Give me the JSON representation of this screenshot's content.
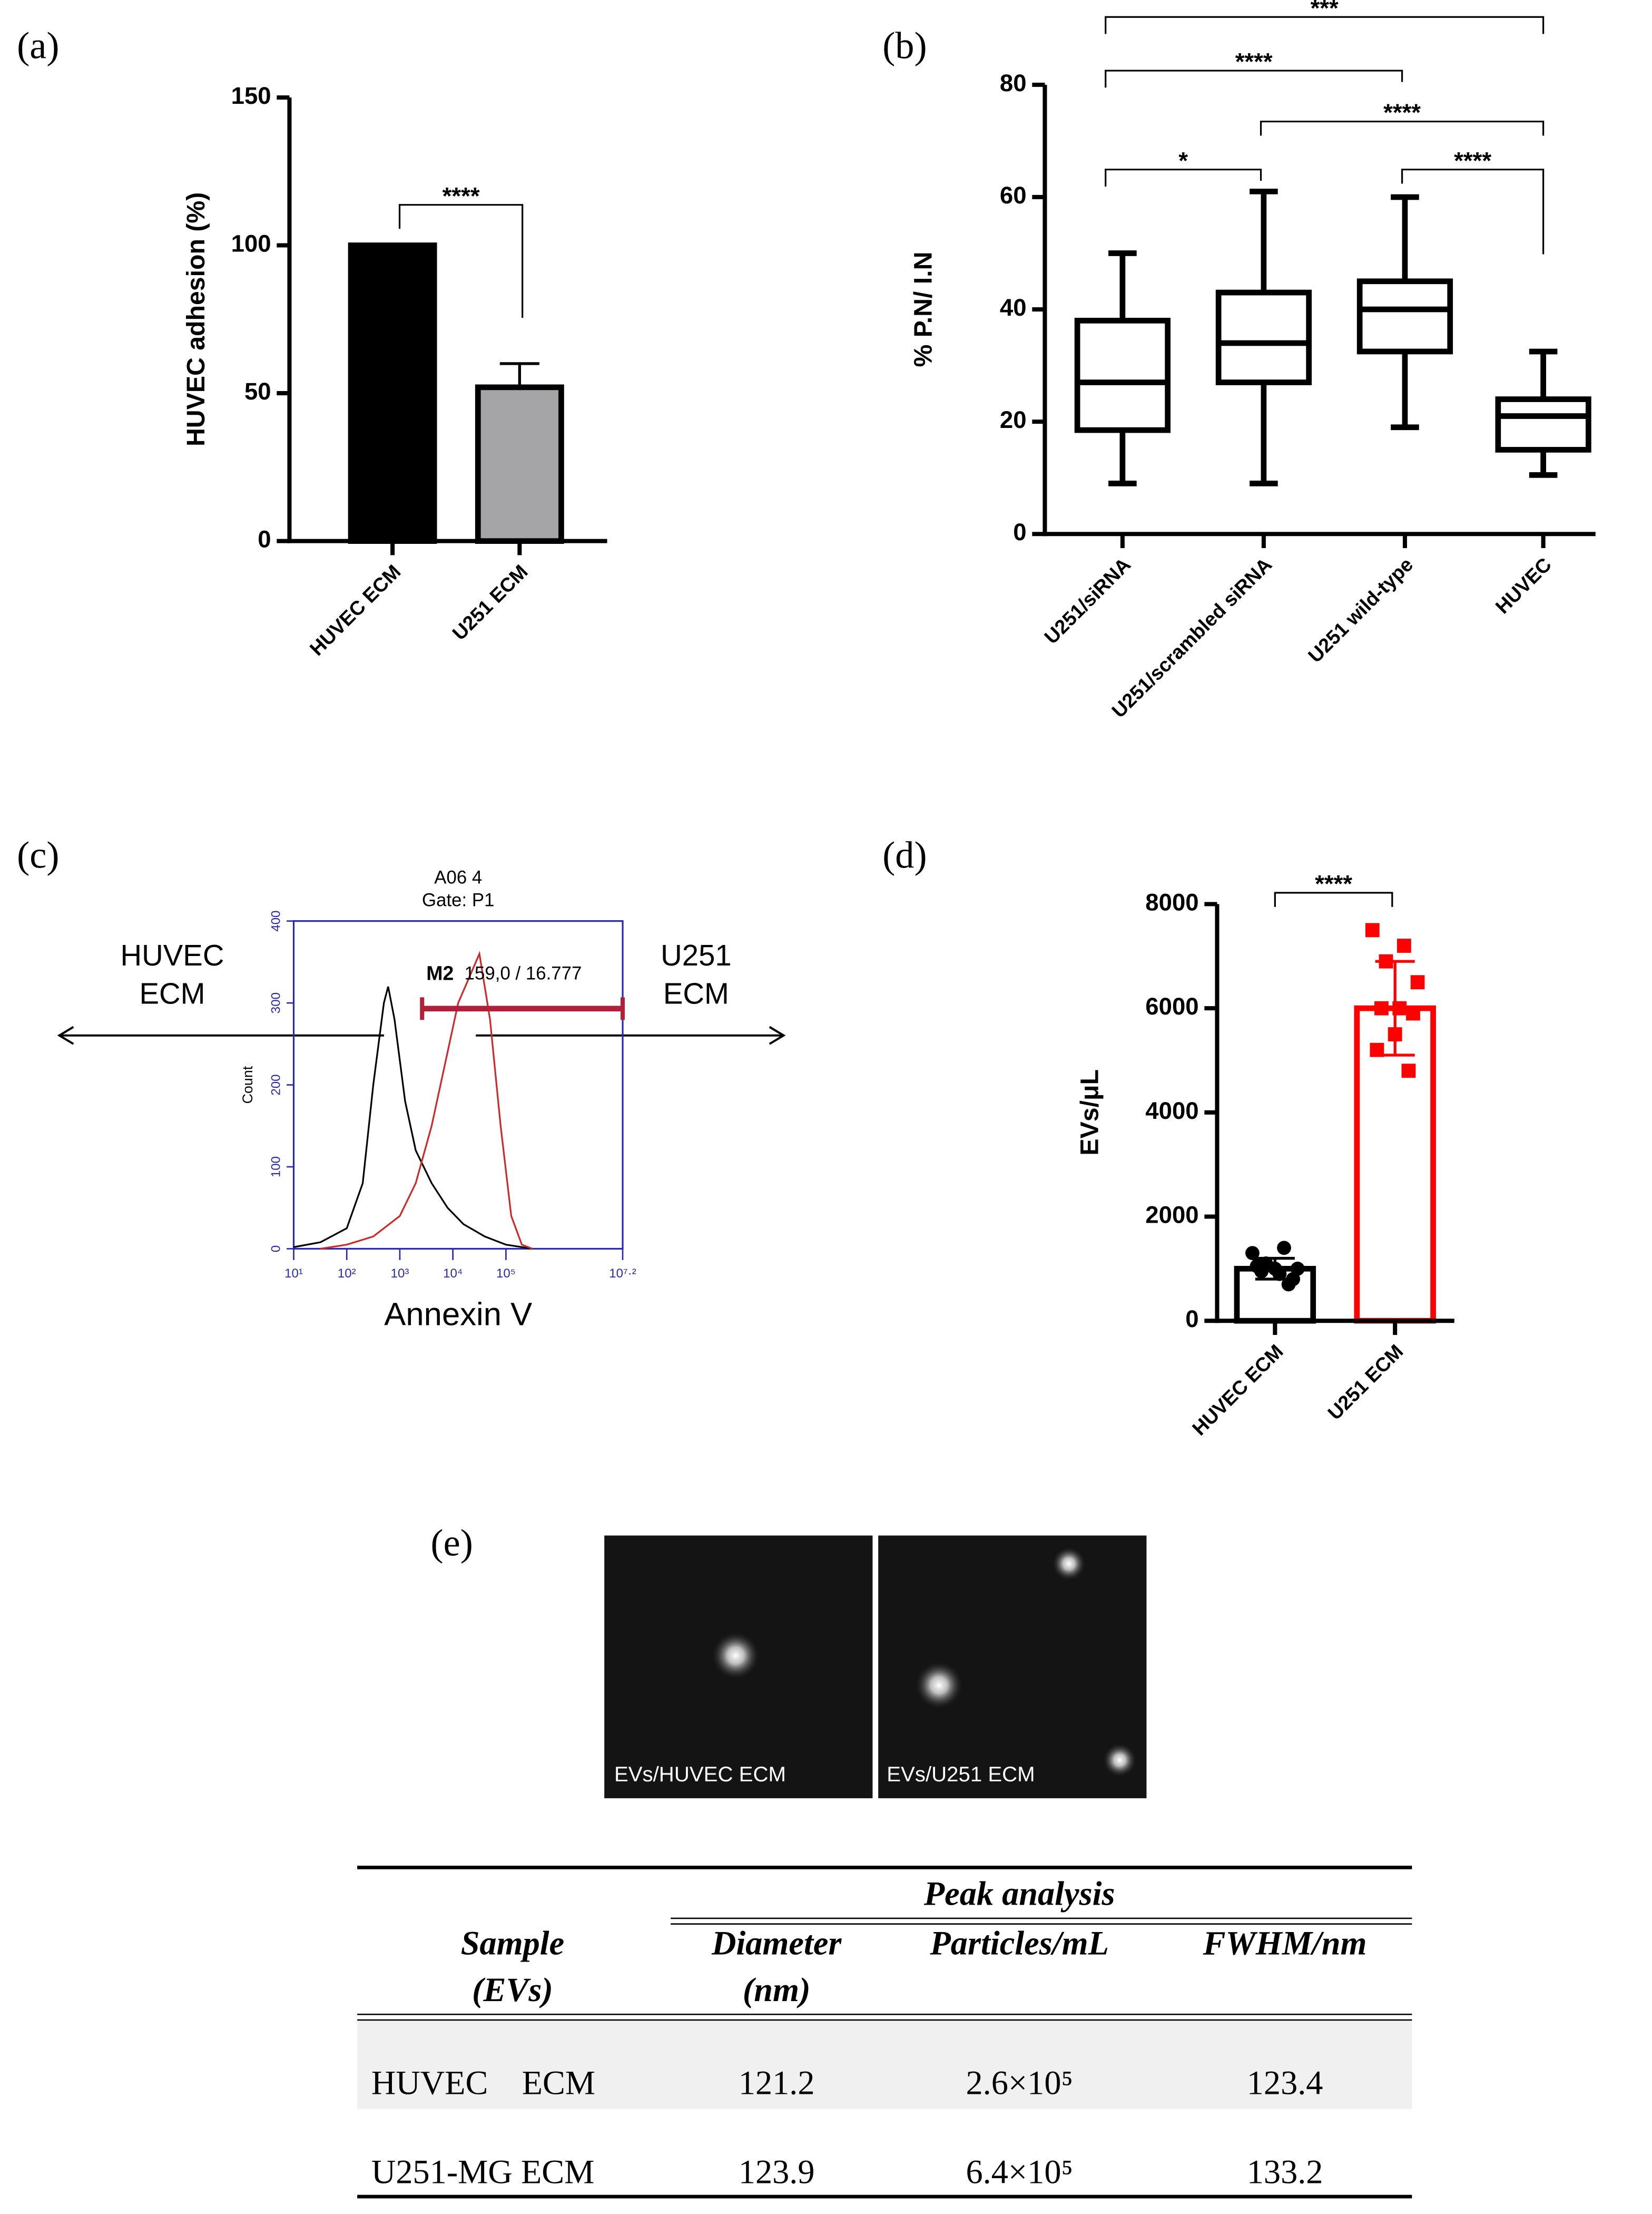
{
  "chart_data": [
    {
      "type": "bar",
      "panel_label": "(a)",
      "categories": [
        "HUVEC ECM",
        "U251 ECM"
      ],
      "values": [
        100,
        52
      ],
      "errors": [
        0,
        8
      ],
      "error_bars": "upper",
      "colors": [
        "#000000",
        "#a5a5a8"
      ],
      "edgecolors": [
        "#000000",
        "#000000"
      ],
      "ylabel": "HUVEC adhesion (%)",
      "ylim": [
        0,
        150
      ],
      "yticks": [
        0,
        50,
        100,
        150
      ],
      "annotations": [
        "****"
      ]
    },
    {
      "type": "box",
      "panel_label": "(b)",
      "categories": [
        "U251/siRNA",
        "U251/scrambled siRNA",
        "U251 wild-type",
        "HUVEC"
      ],
      "min": [
        9,
        9,
        19,
        10.5
      ],
      "q1": [
        18.5,
        27,
        32.5,
        15
      ],
      "median": [
        27,
        34,
        40,
        21
      ],
      "q3": [
        38,
        43,
        45,
        24
      ],
      "max": [
        50,
        61,
        60,
        32.5
      ],
      "ylabel": "% P.N/ I.N",
      "ylim": [
        0,
        80
      ],
      "yticks": [
        0,
        20,
        40,
        60,
        80
      ],
      "annotations": [
        "*",
        "****",
        "***",
        "****",
        "****"
      ]
    },
    {
      "type": "line",
      "panel_label": "(c)",
      "title": "A06 4",
      "subtitle": "Gate: P1",
      "xlabel": "Annexin V",
      "ylabel": "Count",
      "xscale": "log",
      "xlim": [
        10,
        15848932
      ],
      "xticks": [
        {
          "value": 10,
          "label": "10¹"
        },
        {
          "value": 100,
          "label": "10²"
        },
        {
          "value": 1000,
          "label": "10³"
        },
        {
          "value": 10000,
          "label": "10⁴"
        },
        {
          "value": 100000,
          "label": "10⁵"
        },
        {
          "value": 15848932,
          "label": "10⁷·²"
        }
      ],
      "ylim": [
        0,
        400
      ],
      "yticks": [
        0,
        100,
        200,
        300,
        400
      ],
      "labels": [
        [
          "HUVEC",
          "ECM"
        ],
        [
          "U251",
          "ECM"
        ]
      ],
      "series": [
        {
          "color": "#000000",
          "x": [
            10,
            32,
            100,
            200,
            316,
            501,
            603,
            794,
            1259,
            1995,
            3981,
            7943,
            15849,
            39811,
            100000,
            316228
          ],
          "values": [
            2,
            8,
            25,
            80,
            200,
            300,
            320,
            280,
            180,
            120,
            80,
            50,
            30,
            15,
            5,
            0
          ]
        },
        {
          "color": "#cc2b2b",
          "x": [
            32,
            100,
            316,
            1000,
            1995,
            3981,
            7943,
            12589,
            19953,
            31623,
            50119,
            79433,
            125893,
            199526,
            316228
          ],
          "values": [
            0,
            5,
            15,
            40,
            80,
            150,
            240,
            300,
            330,
            360,
            280,
            150,
            40,
            5,
            0
          ]
        }
      ],
      "gate_label": "M2",
      "gate_stats": "159,0 / 16.777",
      "gate_range": [
        2630,
        15848932
      ],
      "gate_color": "#b0203a"
    },
    {
      "type": "bar",
      "panel_label": "(d)",
      "categories": [
        "HUVEC ECM",
        "U251 ECM"
      ],
      "values": [
        1000,
        6000
      ],
      "errors": [
        200,
        900
      ],
      "error_bars": "both",
      "colors": [
        "#ffffff",
        "#ffffff"
      ],
      "edgecolors": [
        "#000000",
        "#ff0000"
      ],
      "markers": [
        "circle",
        "square"
      ],
      "points": [
        [
          1300,
          1400,
          1100,
          1000,
          900,
          950,
          800,
          1000,
          1050,
          700
        ],
        [
          7500,
          7200,
          6900,
          6500,
          6000,
          6000,
          5900,
          5500,
          5200,
          4800
        ]
      ],
      "ylabel": "EVs/μL",
      "ylim": [
        0,
        8000
      ],
      "yticks": [
        0,
        2000,
        4000,
        6000,
        8000
      ],
      "annotations": [
        "****"
      ]
    }
  ],
  "figure_e": {
    "panel_label": "(e)",
    "images": [
      "EVs/HUVEC ECM",
      "EVs/U251 ECM"
    ],
    "table": {
      "group_header": "Peak analysis",
      "columns": [
        [
          "Sample",
          "(EVs)"
        ],
        [
          "Diameter",
          "(nm)"
        ],
        [
          "Particles/mL"
        ],
        [
          "FWHM/nm"
        ]
      ],
      "rows": [
        [
          "HUVEC    ECM",
          "121.2",
          "2.6×10⁵",
          "123.4"
        ],
        [
          "U251-MG ECM",
          "123.9",
          "6.4×10⁵",
          "133.2"
        ]
      ]
    }
  }
}
